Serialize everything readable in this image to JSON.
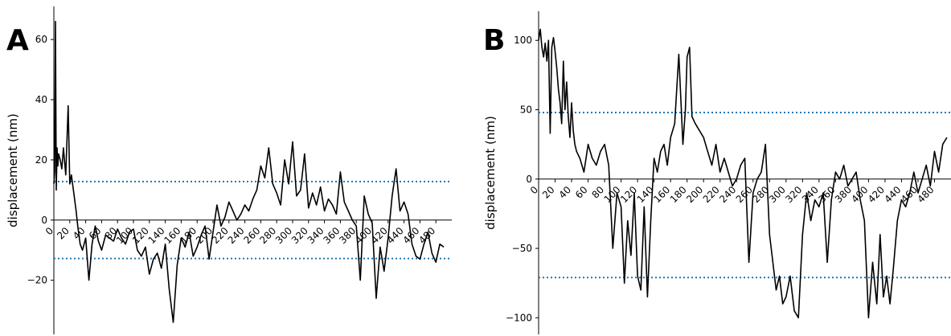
{
  "chart_data": [
    {
      "type": "line",
      "panel_label": "A",
      "ylabel": "displacement (nm)",
      "xlabel": "",
      "xlim": [
        0,
        500
      ],
      "ylim": [
        -38,
        71
      ],
      "x_ticks": [
        0,
        20,
        40,
        60,
        80,
        100,
        120,
        140,
        160,
        180,
        200,
        220,
        240,
        260,
        280,
        300,
        320,
        340,
        360,
        380,
        400,
        420,
        440,
        460,
        480
      ],
      "y_ticks": [
        -20,
        0,
        20,
        40,
        60
      ],
      "threshold_lines": [
        12.8,
        -12.8
      ],
      "threshold_color": "#1f77b4",
      "line_color": "#000000",
      "grid": false,
      "legend": "none",
      "series": [
        {
          "x": [
            0,
            1,
            2,
            3,
            4,
            5,
            6,
            8,
            10,
            12,
            15,
            18,
            20,
            22,
            25,
            28,
            30,
            33,
            36,
            40,
            44,
            48,
            52,
            56,
            60,
            65,
            70,
            75,
            80,
            85,
            90,
            95,
            100,
            105,
            110,
            115,
            120,
            125,
            130,
            135,
            140,
            145,
            150,
            155,
            160,
            165,
            170,
            175,
            180,
            185,
            190,
            195,
            200,
            205,
            210,
            215,
            220,
            225,
            230,
            235,
            240,
            245,
            250,
            255,
            260,
            265,
            270,
            275,
            280,
            285,
            290,
            295,
            300,
            305,
            310,
            315,
            320,
            325,
            330,
            335,
            340,
            345,
            350,
            355,
            360,
            365,
            370,
            375,
            380,
            385,
            390,
            395,
            400,
            405,
            410,
            415,
            420,
            425,
            430,
            435,
            440,
            445,
            450,
            455,
            460,
            465,
            470,
            475,
            480,
            485,
            490
          ],
          "y": [
            12,
            16,
            66,
            10,
            24,
            18,
            22,
            20,
            17,
            24,
            15,
            38,
            12,
            15,
            9,
            3,
            -2,
            -8,
            -10,
            -6,
            -20,
            -8,
            -2,
            -7,
            -10,
            -5,
            -6,
            -7,
            -3,
            -6,
            -8,
            -4,
            -3,
            -10,
            -12,
            -9,
            -18,
            -13,
            -11,
            -16,
            -8,
            -23,
            -34,
            -15,
            -6,
            -9,
            -4,
            -12,
            -9,
            -5,
            -2,
            -13,
            -4,
            5,
            -2,
            1,
            6,
            3,
            0,
            2,
            5,
            3,
            7,
            10,
            18,
            14,
            24,
            12,
            9,
            5,
            20,
            12,
            26,
            8,
            10,
            22,
            4,
            9,
            5,
            11,
            3,
            7,
            5,
            2,
            16,
            6,
            3,
            0,
            -2,
            -20,
            8,
            2,
            -1,
            -26,
            -9,
            -17,
            -6,
            8,
            17,
            3,
            6,
            2,
            -8,
            -12,
            -13,
            -8,
            -4,
            -11,
            -14,
            -8,
            -9
          ]
        }
      ]
    },
    {
      "type": "line",
      "panel_label": "B",
      "ylabel": "displacement (nm)",
      "xlabel": "",
      "xlim": [
        0,
        500
      ],
      "ylim": [
        -112,
        121
      ],
      "x_ticks": [
        0,
        20,
        40,
        60,
        80,
        100,
        120,
        140,
        160,
        180,
        200,
        220,
        240,
        260,
        280,
        300,
        320,
        340,
        360,
        380,
        400,
        420,
        440,
        460,
        480
      ],
      "y_ticks": [
        -100,
        -50,
        0,
        50,
        100
      ],
      "threshold_lines": [
        48,
        -71
      ],
      "threshold_color": "#1f77b4",
      "line_color": "#000000",
      "grid": false,
      "legend": "none",
      "series": [
        {
          "x": [
            0,
            2,
            4,
            6,
            8,
            10,
            12,
            14,
            16,
            18,
            20,
            22,
            24,
            26,
            28,
            30,
            32,
            34,
            36,
            38,
            40,
            42,
            44,
            46,
            50,
            55,
            60,
            65,
            70,
            75,
            80,
            85,
            90,
            95,
            100,
            104,
            108,
            112,
            116,
            120,
            124,
            128,
            132,
            136,
            140,
            144,
            148,
            152,
            156,
            160,
            165,
            170,
            175,
            178,
            180,
            183,
            186,
            190,
            195,
            200,
            205,
            210,
            215,
            220,
            225,
            230,
            235,
            240,
            245,
            250,
            255,
            260,
            265,
            270,
            275,
            280,
            284,
            288,
            292,
            296,
            300,
            305,
            310,
            315,
            320,
            325,
            330,
            335,
            340,
            345,
            350,
            355,
            360,
            365,
            370,
            375,
            380,
            385,
            390,
            395,
            400,
            405,
            410,
            414,
            418,
            422,
            426,
            430,
            435,
            440,
            445,
            450,
            455,
            460,
            465,
            470,
            475,
            480,
            485,
            490,
            495
          ],
          "y": [
            100,
            108,
            95,
            88,
            98,
            85,
            100,
            33,
            95,
            102,
            92,
            80,
            65,
            55,
            40,
            85,
            50,
            70,
            45,
            30,
            55,
            35,
            25,
            20,
            15,
            5,
            25,
            15,
            10,
            20,
            25,
            10,
            -50,
            -10,
            -20,
            -75,
            -30,
            -55,
            -10,
            -70,
            -80,
            -20,
            -85,
            -30,
            15,
            5,
            20,
            25,
            10,
            30,
            40,
            90,
            25,
            50,
            88,
            95,
            45,
            40,
            35,
            30,
            20,
            10,
            25,
            5,
            15,
            5,
            -5,
            0,
            10,
            15,
            -60,
            -10,
            0,
            5,
            25,
            -40,
            -60,
            -80,
            -70,
            -90,
            -85,
            -70,
            -95,
            -100,
            -40,
            -10,
            -30,
            -15,
            -20,
            -10,
            -60,
            -15,
            5,
            0,
            10,
            -5,
            0,
            5,
            -15,
            -30,
            -100,
            -60,
            -90,
            -40,
            -85,
            -70,
            -90,
            -65,
            -30,
            -15,
            -20,
            -10,
            5,
            -10,
            0,
            10,
            -5,
            20,
            5,
            25,
            30
          ]
        }
      ]
    }
  ]
}
